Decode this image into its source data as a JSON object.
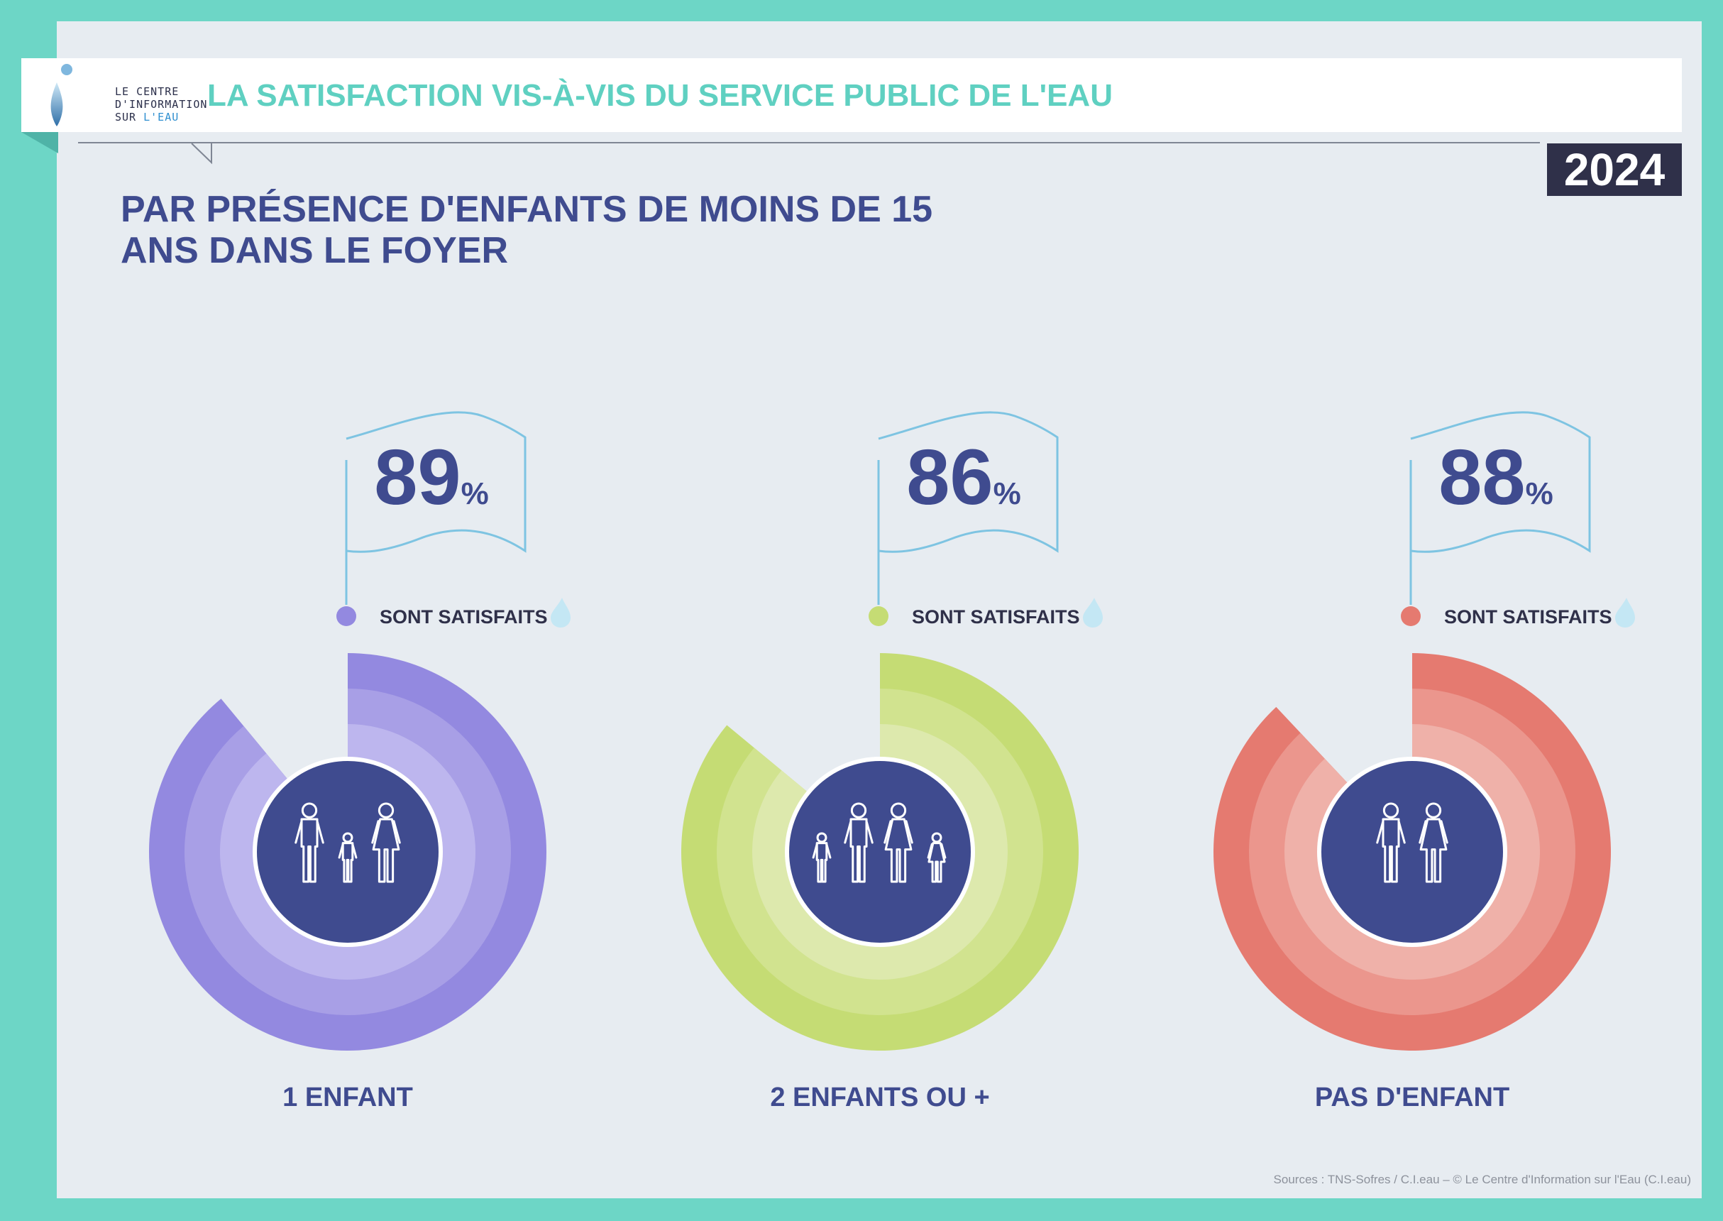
{
  "app": {
    "logo_line1": "LE CENTRE",
    "logo_line2": "D'INFORMATION",
    "logo_line3a": "SUR",
    "logo_line3b": "L'EAU",
    "title": "LA SATISFACTION VIS-À-VIS DU SERVICE PUBLIC DE L'EAU",
    "year": "2024"
  },
  "headline": "PAR PRÉSENCE D'ENFANTS DE MOINS DE 15 ANS DANS LE FOYER",
  "source": "Sources : TNS-Sofres / C.I.eau – © Le Centre d'Information sur l'Eau (C.I.eau)",
  "chart_data": {
    "type": "pie",
    "unit": "%",
    "value_label": "SONT SATISFAITS",
    "categories": [
      "1 ENFANT",
      "2 ENFANTS OU +",
      "PAS D'ENFANT"
    ],
    "values": [
      89,
      86,
      88
    ],
    "colors": {
      "1 ENFANT": [
        "#9389e0",
        "#a89fe6",
        "#bdb6ee"
      ],
      "2 ENFANTS OU +": [
        "#c5dc74",
        "#d1e38f",
        "#dde9ad"
      ],
      "PAS D'ENFANT": [
        "#e57a70",
        "#eb968d",
        "#efb1a9"
      ]
    },
    "center_color": "#3f4b8f",
    "icons": [
      "family-one-child-icon",
      "family-two-children-icon",
      "couple-icon"
    ]
  }
}
